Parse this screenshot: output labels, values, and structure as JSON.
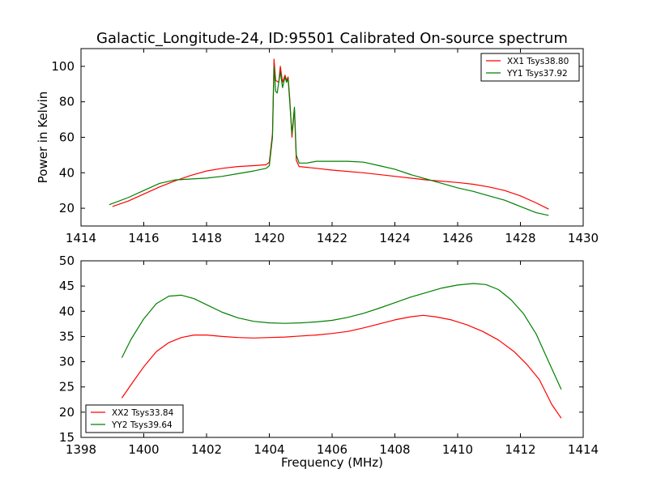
{
  "figure": {
    "title": "Galactic_Longitude-24, ID:95501 Calibrated On-source spectrum",
    "xlabel": "Frequency (MHz)"
  },
  "chart_data": [
    {
      "type": "line",
      "title": "Galactic_Longitude-24, ID:95501 Calibrated On-source spectrum",
      "xlabel": "",
      "ylabel": "Power in Kelvin",
      "xlim": [
        1414,
        1430
      ],
      "ylim": [
        10,
        110
      ],
      "xticks": [
        1414,
        1416,
        1418,
        1420,
        1422,
        1424,
        1426,
        1428,
        1430
      ],
      "yticks": [
        20,
        40,
        60,
        80,
        100
      ],
      "grid": false,
      "legend_position": "upper right",
      "series": [
        {
          "name": "XX1 Tsys38.80",
          "color": "#ff0000",
          "points": [
            [
              1415.0,
              21
            ],
            [
              1415.5,
              24
            ],
            [
              1416.0,
              28
            ],
            [
              1416.5,
              32
            ],
            [
              1417.0,
              35.5
            ],
            [
              1417.5,
              38.5
            ],
            [
              1418.0,
              41
            ],
            [
              1418.5,
              42.5
            ],
            [
              1419.0,
              43.5
            ],
            [
              1419.5,
              44
            ],
            [
              1419.9,
              44.5
            ],
            [
              1420.0,
              46
            ],
            [
              1420.1,
              62
            ],
            [
              1420.15,
              104
            ],
            [
              1420.2,
              92
            ],
            [
              1420.3,
              91
            ],
            [
              1420.35,
              100
            ],
            [
              1420.42,
              91
            ],
            [
              1420.5,
              95
            ],
            [
              1420.55,
              92
            ],
            [
              1420.6,
              94
            ],
            [
              1420.65,
              82
            ],
            [
              1420.72,
              60
            ],
            [
              1420.8,
              76
            ],
            [
              1420.86,
              47
            ],
            [
              1420.95,
              43.5
            ],
            [
              1421.5,
              42.5
            ],
            [
              1422.0,
              41.5
            ],
            [
              1423.0,
              40
            ],
            [
              1424.0,
              38
            ],
            [
              1425.0,
              36
            ],
            [
              1426.0,
              34.5
            ],
            [
              1426.5,
              33.5
            ],
            [
              1427.0,
              32
            ],
            [
              1427.5,
              30
            ],
            [
              1428.0,
              27
            ],
            [
              1428.5,
              23
            ],
            [
              1428.9,
              19.5
            ]
          ]
        },
        {
          "name": "YY1 Tsys37.92",
          "color": "#008000",
          "points": [
            [
              1414.9,
              22
            ],
            [
              1415.5,
              26
            ],
            [
              1416.0,
              30
            ],
            [
              1416.5,
              34
            ],
            [
              1417.0,
              36
            ],
            [
              1417.5,
              36.5
            ],
            [
              1418.0,
              37
            ],
            [
              1418.5,
              38
            ],
            [
              1419.0,
              39.5
            ],
            [
              1419.5,
              41
            ],
            [
              1419.9,
              42.5
            ],
            [
              1420.0,
              44
            ],
            [
              1420.1,
              60
            ],
            [
              1420.15,
              100
            ],
            [
              1420.2,
              86
            ],
            [
              1420.25,
              85
            ],
            [
              1420.35,
              97
            ],
            [
              1420.42,
              88
            ],
            [
              1420.5,
              94
            ],
            [
              1420.55,
              91
            ],
            [
              1420.6,
              93
            ],
            [
              1420.65,
              80
            ],
            [
              1420.72,
              62
            ],
            [
              1420.8,
              77
            ],
            [
              1420.86,
              50
            ],
            [
              1420.95,
              45.5
            ],
            [
              1421.2,
              45.5
            ],
            [
              1421.5,
              46.5
            ],
            [
              1422.0,
              46.5
            ],
            [
              1422.5,
              46.5
            ],
            [
              1423.0,
              46
            ],
            [
              1423.5,
              44
            ],
            [
              1424.0,
              42
            ],
            [
              1424.5,
              39
            ],
            [
              1425.0,
              36.5
            ],
            [
              1425.5,
              34
            ],
            [
              1426.0,
              31.5
            ],
            [
              1426.5,
              29.5
            ],
            [
              1427.0,
              27
            ],
            [
              1427.5,
              24.5
            ],
            [
              1428.0,
              21
            ],
            [
              1428.5,
              17.5
            ],
            [
              1428.9,
              16
            ]
          ]
        }
      ]
    },
    {
      "type": "line",
      "title": "",
      "xlabel": "Frequency (MHz)",
      "ylabel": "",
      "xlim": [
        1398,
        1414
      ],
      "ylim": [
        15,
        50
      ],
      "xticks": [
        1398,
        1400,
        1402,
        1404,
        1406,
        1408,
        1410,
        1412,
        1414
      ],
      "yticks": [
        15,
        20,
        25,
        30,
        35,
        40,
        45,
        50
      ],
      "grid": false,
      "legend_position": "lower left",
      "series": [
        {
          "name": "XX2 Tsys33.84",
          "color": "#ff0000",
          "points": [
            [
              1399.3,
              22.8
            ],
            [
              1399.6,
              25.5
            ],
            [
              1400.0,
              29
            ],
            [
              1400.4,
              32
            ],
            [
              1400.8,
              33.8
            ],
            [
              1401.2,
              34.8
            ],
            [
              1401.6,
              35.3
            ],
            [
              1402.0,
              35.3
            ],
            [
              1402.5,
              35
            ],
            [
              1403.0,
              34.8
            ],
            [
              1403.5,
              34.7
            ],
            [
              1404.0,
              34.8
            ],
            [
              1404.5,
              34.9
            ],
            [
              1405.0,
              35.1
            ],
            [
              1405.5,
              35.3
            ],
            [
              1406.0,
              35.6
            ],
            [
              1406.5,
              36
            ],
            [
              1407.0,
              36.7
            ],
            [
              1407.5,
              37.5
            ],
            [
              1408.0,
              38.3
            ],
            [
              1408.5,
              38.9
            ],
            [
              1408.9,
              39.2
            ],
            [
              1409.3,
              38.9
            ],
            [
              1409.8,
              38.3
            ],
            [
              1410.3,
              37.3
            ],
            [
              1410.8,
              36
            ],
            [
              1411.3,
              34.3
            ],
            [
              1411.8,
              32
            ],
            [
              1412.2,
              29.5
            ],
            [
              1412.6,
              26.5
            ],
            [
              1413.0,
              21.5
            ],
            [
              1413.3,
              18.8
            ]
          ]
        },
        {
          "name": "YY2 Tsys39.64",
          "color": "#008000",
          "points": [
            [
              1399.3,
              30.8
            ],
            [
              1399.6,
              34.5
            ],
            [
              1400.0,
              38.5
            ],
            [
              1400.4,
              41.5
            ],
            [
              1400.8,
              43
            ],
            [
              1401.2,
              43.2
            ],
            [
              1401.6,
              42.5
            ],
            [
              1402.0,
              41.3
            ],
            [
              1402.5,
              39.8
            ],
            [
              1403.0,
              38.7
            ],
            [
              1403.5,
              38
            ],
            [
              1404.0,
              37.7
            ],
            [
              1404.5,
              37.6
            ],
            [
              1405.0,
              37.7
            ],
            [
              1405.5,
              37.9
            ],
            [
              1406.0,
              38.2
            ],
            [
              1406.5,
              38.8
            ],
            [
              1407.0,
              39.6
            ],
            [
              1407.5,
              40.6
            ],
            [
              1408.0,
              41.7
            ],
            [
              1408.5,
              42.8
            ],
            [
              1409.0,
              43.7
            ],
            [
              1409.5,
              44.6
            ],
            [
              1410.0,
              45.2
            ],
            [
              1410.5,
              45.5
            ],
            [
              1410.9,
              45.3
            ],
            [
              1411.3,
              44.3
            ],
            [
              1411.7,
              42.3
            ],
            [
              1412.1,
              39.5
            ],
            [
              1412.5,
              35.5
            ],
            [
              1412.9,
              30
            ],
            [
              1413.3,
              24.5
            ]
          ]
        }
      ]
    }
  ]
}
